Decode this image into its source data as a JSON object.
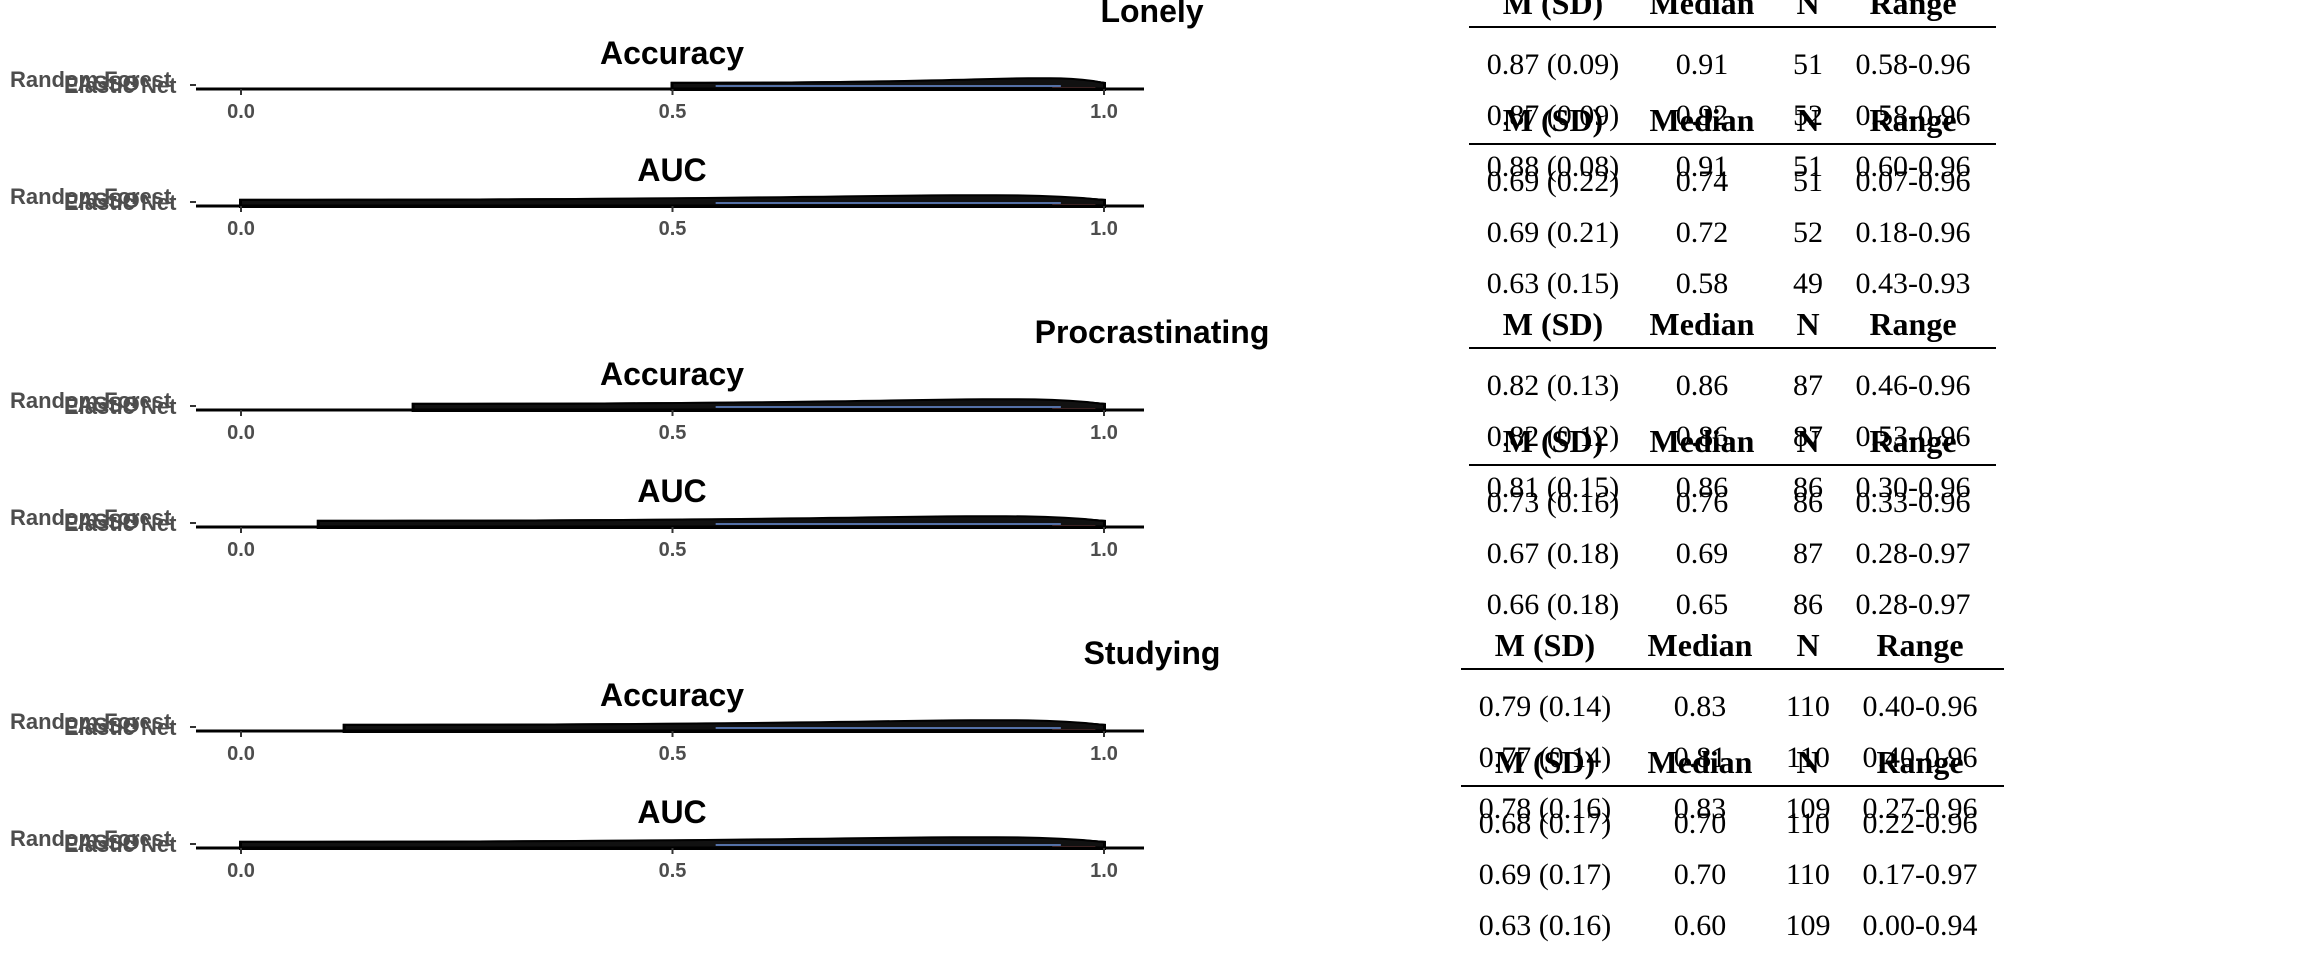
{
  "chart_data": {
    "type": "table",
    "x_ticks": [
      "0.0",
      "0.5",
      "1.0"
    ],
    "xlim": [
      0,
      1
    ],
    "models": [
      "Random Forest",
      "LASSO",
      "Elastic Net"
    ],
    "table_headers": [
      "M (SD)",
      "Median",
      "N",
      "Range"
    ],
    "sections": [
      {
        "title": "Lonely",
        "metrics": [
          {
            "name": "Accuracy",
            "min": 0.5,
            "rows": [
              [
                "0.87 (0.09)",
                "0.91",
                "51",
                "0.58-0.96"
              ],
              [
                "0.87 (0.09)",
                "0.92",
                "52",
                "0.58-0.96"
              ],
              [
                "0.88 (0.08)",
                "0.91",
                "51",
                "0.60-0.96"
              ]
            ]
          },
          {
            "name": "AUC",
            "min": 0.0,
            "rows": [
              [
                "0.69 (0.22)",
                "0.74",
                "51",
                "0.07-0.96"
              ],
              [
                "0.69 (0.21)",
                "0.72",
                "52",
                "0.18-0.96"
              ],
              [
                "0.63 (0.15)",
                "0.58",
                "49",
                "0.43-0.93"
              ]
            ]
          }
        ]
      },
      {
        "title": "Procrastinating",
        "metrics": [
          {
            "name": "Accuracy",
            "min": 0.2,
            "rows": [
              [
                "0.82 (0.13)",
                "0.86",
                "87",
                "0.46-0.96"
              ],
              [
                "0.82 (0.12)",
                "0.86",
                "87",
                "0.53-0.96"
              ],
              [
                "0.81 (0.15)",
                "0.86",
                "86",
                "0.30-0.96"
              ]
            ]
          },
          {
            "name": "AUC",
            "min": 0.09,
            "rows": [
              [
                "0.73 (0.16)",
                "0.76",
                "86",
                "0.33-0.96"
              ],
              [
                "0.67 (0.18)",
                "0.69",
                "87",
                "0.28-0.97"
              ],
              [
                "0.66 (0.18)",
                "0.65",
                "86",
                "0.28-0.97"
              ]
            ]
          }
        ]
      },
      {
        "title": "Studying",
        "metrics": [
          {
            "name": "Accuracy",
            "min": 0.12,
            "rows": [
              [
                "0.79 (0.14)",
                "0.83",
                "110",
                "0.40-0.96"
              ],
              [
                "0.77 (0.14)",
                "0.81",
                "110",
                "0.40-0.96"
              ],
              [
                "0.78 (0.16)",
                "0.83",
                "109",
                "0.27-0.96"
              ]
            ]
          },
          {
            "name": "AUC",
            "min": 0.0,
            "rows": [
              [
                "0.68 (0.17)",
                "0.70",
                "110",
                "0.22-0.96"
              ],
              [
                "0.69 (0.17)",
                "0.70",
                "110",
                "0.17-0.97"
              ],
              [
                "0.63 (0.16)",
                "0.60",
                "109",
                "0.00-0.94"
              ]
            ]
          }
        ]
      }
    ]
  },
  "colors": {
    "text": "#000000",
    "tick_text": "#4d4d4d",
    "accent_blue": "#6a8fd8",
    "accent_pink": "#e07a7a"
  }
}
